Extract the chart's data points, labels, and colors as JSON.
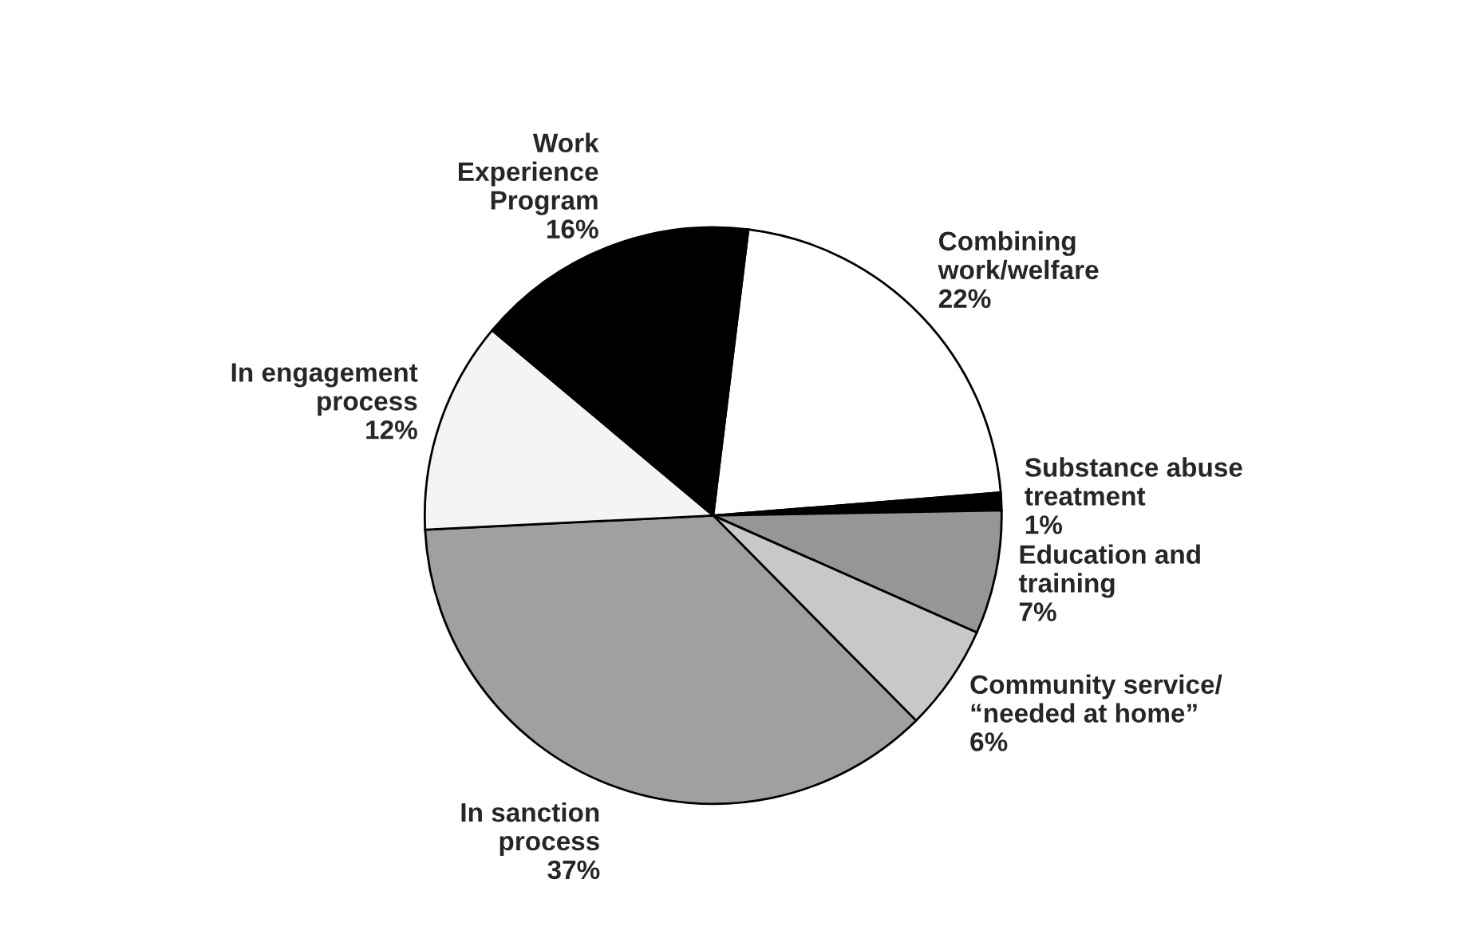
{
  "chart_data": {
    "type": "pie",
    "categories": [
      "Combining\nwork/welfare",
      "Substance abuse\ntreatment",
      "Education and\ntraining",
      "Community service/\n“needed at home”",
      "In sanction\nprocess",
      "In engagement\nprocess",
      "Work\nExperience\nProgram"
    ],
    "values": [
      22,
      1,
      7,
      6,
      37,
      12,
      16
    ],
    "value_labels": [
      "22%",
      "1%",
      "7%",
      "6%",
      "37%",
      "12%",
      "16%"
    ],
    "colors": [
      "#ffffff",
      "#000000",
      "#969696",
      "#c8c8c8",
      "#a0a0a0",
      "#f4f4f4",
      "#000000"
    ]
  }
}
